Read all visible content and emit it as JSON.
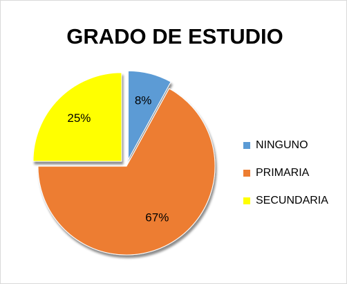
{
  "chart_data": {
    "type": "pie",
    "title": "GRADO DE ESTUDIO",
    "categories": [
      "NINGUNO",
      "PRIMARIA",
      "SECUNDARIA"
    ],
    "values": [
      8,
      67,
      25
    ],
    "value_labels": [
      "8%",
      "67%",
      "25%"
    ],
    "colors": [
      "#5b9bd5",
      "#ed7d31",
      "#ffff00"
    ],
    "legend": "right"
  }
}
